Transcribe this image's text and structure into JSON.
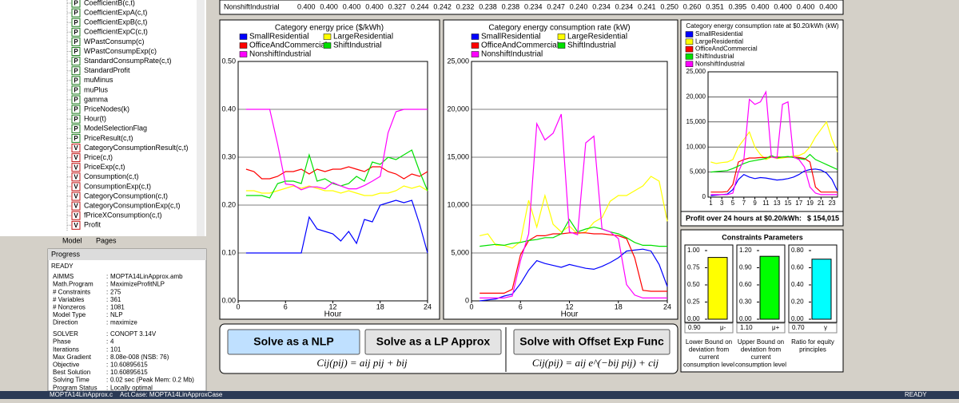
{
  "tree": {
    "items": [
      {
        "icon": "P",
        "label": "CoefficientB(c,t)"
      },
      {
        "icon": "P",
        "label": "CoefficientExpA(c,t)"
      },
      {
        "icon": "P",
        "label": "CoefficientExpB(c,t)"
      },
      {
        "icon": "P",
        "label": "CoefficientExpC(c,t)"
      },
      {
        "icon": "P",
        "label": "WPastConsump(c)"
      },
      {
        "icon": "P",
        "label": "WPastConsumpExp(c)"
      },
      {
        "icon": "P",
        "label": "StandardConsumpRate(c,t)"
      },
      {
        "icon": "P",
        "label": "StandardProfit"
      },
      {
        "icon": "P",
        "label": "muMinus"
      },
      {
        "icon": "P",
        "label": "muPlus"
      },
      {
        "icon": "P",
        "label": "gamma"
      },
      {
        "icon": "P",
        "label": "PriceNodes(k)"
      },
      {
        "icon": "P",
        "label": "Hour(t)"
      },
      {
        "icon": "P",
        "label": "ModelSelectionFlag"
      },
      {
        "icon": "P",
        "label": "PriceResult(c,t)"
      },
      {
        "icon": "V",
        "label": "CategoryConsumptionResult(c,t)"
      },
      {
        "icon": "V",
        "label": "Price(c,t)"
      },
      {
        "icon": "V",
        "label": "PriceExp(c,t)"
      },
      {
        "icon": "V",
        "label": "Consumption(c,t)"
      },
      {
        "icon": "V",
        "label": "ConsumptionExp(c,t)"
      },
      {
        "icon": "V",
        "label": "CategoryConsumption(c,t)"
      },
      {
        "icon": "V",
        "label": "CategoryConsumptionExp(c,t)"
      },
      {
        "icon": "V",
        "label": "fPriceXConsumption(c,t)"
      },
      {
        "icon": "V",
        "label": "Profit"
      }
    ]
  },
  "tabs": [
    "Model",
    "Pages"
  ],
  "progress": {
    "title": "Progress",
    "state": "READY",
    "separator": ":",
    "model_rows": [
      [
        "AIMMS",
        "MOPTA14LinApprox.amb"
      ],
      [
        "Math.Program",
        "MaximizeProfitNLP"
      ],
      [
        "# Constraints",
        "275"
      ],
      [
        "# Variables",
        "361"
      ],
      [
        "# Nonzeros",
        "1081"
      ],
      [
        "Model Type",
        "NLP"
      ],
      [
        "Direction",
        "maximize"
      ]
    ],
    "solver_rows": [
      [
        "SOLVER",
        "CONOPT 3.14V"
      ],
      [
        "Phase",
        "4"
      ],
      [
        "Iterations",
        "101"
      ],
      [
        "Max Gradient",
        "8.08e-008  (NSB: 76)"
      ],
      [
        "Objective",
        "10.60895615"
      ],
      [
        "Best Solution",
        "10.60895615"
      ],
      [
        "Solving Time",
        "0.02 sec  (Peak Mem: 0.2 Mb)"
      ],
      [
        "Program Status",
        "Locally optimal"
      ]
    ]
  },
  "status_bar": {
    "file": "MOPTA14LinApprox.c",
    "case": "Act.Case: MOPTA14LinApproxCase",
    "state": "READY"
  },
  "table_row": {
    "label": "NonshiftIndustrial",
    "values": [
      "0.400",
      "0.400",
      "0.400",
      "0.400",
      "0.327",
      "0.244",
      "0.242",
      "0.232",
      "0.238",
      "0.238",
      "0.234",
      "0.247",
      "0.240",
      "0.234",
      "0.234",
      "0.241",
      "0.250",
      "0.260",
      "0.351",
      "0.395",
      "0.400",
      "0.400",
      "0.400",
      "0.400"
    ]
  },
  "chart_data": [
    {
      "type": "line",
      "title": "Category energy price ($/kWh)",
      "x_label": "Hour",
      "x": [
        1,
        2,
        3,
        4,
        5,
        6,
        7,
        8,
        9,
        10,
        11,
        12,
        13,
        14,
        15,
        16,
        17,
        18,
        19,
        20,
        21,
        22,
        23,
        24
      ],
      "xlim": [
        0,
        24
      ],
      "xticks": [
        0,
        6,
        12,
        18,
        24
      ],
      "ylim": [
        0,
        0.5
      ],
      "yticks": [
        {
          "value": 0,
          "label": "0.00"
        },
        {
          "value": 0.1,
          "label": "0.10"
        },
        {
          "value": 0.2,
          "label": "0.20"
        },
        {
          "value": 0.3,
          "label": "0.30"
        },
        {
          "value": 0.4,
          "label": "0.40"
        },
        {
          "value": 0.5,
          "label": "0.50"
        }
      ],
      "grid": true,
      "legend_columns": 2,
      "series": [
        {
          "name": "SmallResidential",
          "color": "#0000ff",
          "values": [
            0.1,
            0.1,
            0.1,
            0.1,
            0.1,
            0.1,
            0.1,
            0.1,
            0.175,
            0.15,
            0.145,
            0.14,
            0.125,
            0.145,
            0.12,
            0.17,
            0.165,
            0.2,
            0.205,
            0.21,
            0.205,
            0.21,
            0.16,
            0.1
          ]
        },
        {
          "name": "LargeResidential",
          "color": "#ffff00",
          "values": [
            0.23,
            0.23,
            0.225,
            0.225,
            0.23,
            0.235,
            0.24,
            0.235,
            0.24,
            0.235,
            0.23,
            0.23,
            0.225,
            0.23,
            0.225,
            0.22,
            0.22,
            0.225,
            0.225,
            0.23,
            0.24,
            0.235,
            0.24,
            0.23
          ]
        },
        {
          "name": "OfficeAndCommercial",
          "color": "#ff0000",
          "values": [
            0.275,
            0.27,
            0.255,
            0.255,
            0.26,
            0.27,
            0.27,
            0.275,
            0.265,
            0.275,
            0.27,
            0.275,
            0.275,
            0.28,
            0.275,
            0.27,
            0.28,
            0.28,
            0.27,
            0.265,
            0.255,
            0.265,
            0.26,
            0.27
          ]
        },
        {
          "name": "ShiftIndustrial",
          "color": "#00e000",
          "values": [
            0.22,
            0.22,
            0.22,
            0.215,
            0.245,
            0.25,
            0.25,
            0.245,
            0.305,
            0.25,
            0.255,
            0.245,
            0.24,
            0.245,
            0.26,
            0.25,
            0.29,
            0.285,
            0.3,
            0.295,
            0.305,
            0.315,
            0.27,
            0.23
          ]
        },
        {
          "name": "NonshiftIndustrial",
          "color": "#ff00ff",
          "values": [
            0.4,
            0.4,
            0.4,
            0.4,
            0.327,
            0.244,
            0.242,
            0.232,
            0.238,
            0.238,
            0.234,
            0.247,
            0.24,
            0.234,
            0.234,
            0.241,
            0.25,
            0.26,
            0.351,
            0.395,
            0.4,
            0.4,
            0.4,
            0.4
          ]
        }
      ]
    },
    {
      "type": "line",
      "title": "Category energy consumption rate (kW)",
      "x_label": "Hour",
      "x": [
        1,
        2,
        3,
        4,
        5,
        6,
        7,
        8,
        9,
        10,
        11,
        12,
        13,
        14,
        15,
        16,
        17,
        18,
        19,
        20,
        21,
        22,
        23,
        24
      ],
      "xlim": [
        0,
        24
      ],
      "xticks": [
        0,
        6,
        12,
        18,
        24
      ],
      "ylim": [
        0,
        25000
      ],
      "yticks": [
        0,
        {
          "value": 5000,
          "label": "5,000"
        },
        {
          "value": 10000,
          "label": "10,000"
        },
        {
          "value": 15000,
          "label": "15,000"
        },
        {
          "value": 20000,
          "label": "20,000"
        },
        {
          "value": 25000,
          "label": "25,000"
        }
      ],
      "grid": true,
      "legend_columns": 2,
      "series": [
        {
          "name": "SmallResidential",
          "color": "#0000ff",
          "values": [
            0,
            100,
            200,
            500,
            700,
            1800,
            3200,
            4200,
            3900,
            3700,
            3500,
            3800,
            3600,
            3400,
            3300,
            3600,
            4000,
            4500,
            5200,
            5300,
            5400,
            5200,
            3800,
            1500
          ]
        },
        {
          "name": "LargeResidential",
          "color": "#ffff00",
          "values": [
            6800,
            7000,
            5800,
            5800,
            5500,
            6200,
            10500,
            7700,
            11000,
            8000,
            7200,
            7800,
            7000,
            7200,
            8200,
            8700,
            10400,
            11000,
            11000,
            11500,
            12000,
            13000,
            12500,
            8300
          ]
        },
        {
          "name": "OfficeAndCommercial",
          "color": "#ff0000",
          "values": [
            800,
            800,
            800,
            800,
            1200,
            4800,
            6300,
            6800,
            6800,
            7000,
            7000,
            7100,
            7100,
            7100,
            7000,
            7000,
            6900,
            6800,
            6500,
            4500,
            1100,
            1000,
            1000,
            1000
          ]
        },
        {
          "name": "ShiftIndustrial",
          "color": "#00e000",
          "values": [
            5700,
            5800,
            5900,
            5800,
            6000,
            6100,
            6300,
            6400,
            6600,
            6600,
            7000,
            8500,
            7200,
            7500,
            7700,
            7500,
            7200,
            7000,
            6600,
            6100,
            5800,
            5800,
            5700,
            5700
          ]
        },
        {
          "name": "NonshiftIndustrial",
          "color": "#ff00ff",
          "values": [
            300,
            300,
            300,
            300,
            500,
            4200,
            7000,
            18500,
            16800,
            17500,
            19500,
            7200,
            6900,
            16500,
            17200,
            7500,
            7200,
            6500,
            1700,
            600,
            300,
            300,
            300,
            300
          ]
        }
      ]
    },
    {
      "type": "line",
      "title": "Category energy consumption rate at $0.20/kWh (kW)",
      "x": [
        1,
        2,
        3,
        4,
        5,
        6,
        7,
        8,
        9,
        10,
        11,
        12,
        13,
        14,
        15,
        16,
        17,
        18,
        19,
        20,
        21,
        22,
        23,
        24
      ],
      "xlim": [
        0.5,
        24
      ],
      "xticks": [
        1,
        3,
        5,
        7,
        9,
        11,
        13,
        15,
        17,
        19,
        21,
        23
      ],
      "ylim": [
        0,
        25000
      ],
      "yticks": [
        0,
        {
          "value": 5000,
          "label": "5,000"
        },
        {
          "value": 10000,
          "label": "10,000"
        },
        {
          "value": 15000,
          "label": "15,000"
        },
        {
          "value": 20000,
          "label": "20,000"
        },
        {
          "value": 25000,
          "label": "25,000"
        }
      ],
      "grid": true,
      "legend_columns": 1,
      "series": [
        {
          "name": "SmallResidential",
          "color": "#0000ff",
          "values": [
            300,
            400,
            500,
            600,
            1500,
            3500,
            4500,
            4000,
            3700,
            3900,
            3800,
            3600,
            3400,
            3500,
            3700,
            4000,
            4500,
            5200,
            5500,
            5600,
            5400,
            4800,
            3500,
            1200
          ]
        },
        {
          "name": "LargeResidential",
          "color": "#ffff00",
          "values": [
            7000,
            6700,
            6900,
            7000,
            7500,
            10000,
            11500,
            13000,
            10000,
            8500,
            7500,
            8000,
            7700,
            7800,
            8000,
            8200,
            8300,
            8800,
            10000,
            12000,
            13500,
            15000,
            11500,
            9000
          ]
        },
        {
          "name": "OfficeAndCommercial",
          "color": "#ff0000",
          "values": [
            1000,
            1000,
            1000,
            1100,
            2500,
            7000,
            7500,
            7800,
            7800,
            7900,
            7900,
            8000,
            8000,
            8000,
            8000,
            8000,
            7900,
            7700,
            7000,
            2000,
            1000,
            1000,
            1000,
            1000
          ]
        },
        {
          "name": "ShiftIndustrial",
          "color": "#00e000",
          "values": [
            5000,
            5100,
            5200,
            5300,
            5700,
            6200,
            6700,
            7100,
            7300,
            7500,
            7700,
            8300,
            7800,
            8000,
            8100,
            7900,
            7700,
            7500,
            8500,
            7500,
            7000,
            6500,
            6000,
            5500
          ]
        },
        {
          "name": "NonshiftIndustrial",
          "color": "#ff00ff",
          "values": [
            500,
            500,
            500,
            500,
            800,
            5000,
            7500,
            19500,
            18500,
            19000,
            21000,
            8000,
            7800,
            18500,
            19000,
            8000,
            7500,
            6000,
            2000,
            800,
            500,
            500,
            500,
            500
          ]
        }
      ]
    }
  ],
  "profit": {
    "label": "Profit over 24 hours at $0.20/kWh:",
    "value": "$  154,015"
  },
  "constraints": {
    "title": "Constraints Parameters",
    "gauges": [
      {
        "name": "μ-",
        "value": 0.9,
        "value_label": "0.90",
        "color": "#ffff00",
        "ylim": [
          0,
          1
        ],
        "yticks": [
          {
            "value": 0,
            "label": "0.00"
          },
          {
            "value": 0.25,
            "label": "0.25"
          },
          {
            "value": 0.5,
            "label": "0.50"
          },
          {
            "value": 0.75,
            "label": "0.75"
          },
          {
            "value": 1,
            "label": "1.00"
          }
        ],
        "caption": [
          "Lower Bound on",
          "deviation from",
          "current",
          "consumption level"
        ]
      },
      {
        "name": "μ+",
        "value": 1.1,
        "value_label": "1.10",
        "color": "#00ff00",
        "ylim": [
          0,
          1.2
        ],
        "yticks": [
          {
            "value": 0,
            "label": "0.00"
          },
          {
            "value": 0.3,
            "label": "0.30"
          },
          {
            "value": 0.6,
            "label": "0.60"
          },
          {
            "value": 0.9,
            "label": "0.90"
          },
          {
            "value": 1.2,
            "label": "1.20"
          }
        ],
        "caption": [
          "Upper Bound on",
          "deviation from",
          "current",
          "consumption level"
        ]
      },
      {
        "name": "γ",
        "value": 0.7,
        "value_label": "0.70",
        "color": "#00ffff",
        "ylim": [
          0,
          0.8
        ],
        "yticks": [
          {
            "value": 0,
            "label": "0.00"
          },
          {
            "value": 0.2,
            "label": "0.20"
          },
          {
            "value": 0.4,
            "label": "0.40"
          },
          {
            "value": 0.6,
            "label": "0.60"
          },
          {
            "value": 0.8,
            "label": "0.80"
          }
        ],
        "caption": [
          "Ratio for equity",
          "principles"
        ]
      }
    ]
  },
  "buttons": [
    "Solve as a NLP",
    "Solve as a LP Approx",
    "Solve with Offset Exp Func"
  ],
  "formulas": [
    "Cij(pij) = aij pij + bij",
    "Cij(pij) = aij e^(−bij pij) + cij"
  ]
}
